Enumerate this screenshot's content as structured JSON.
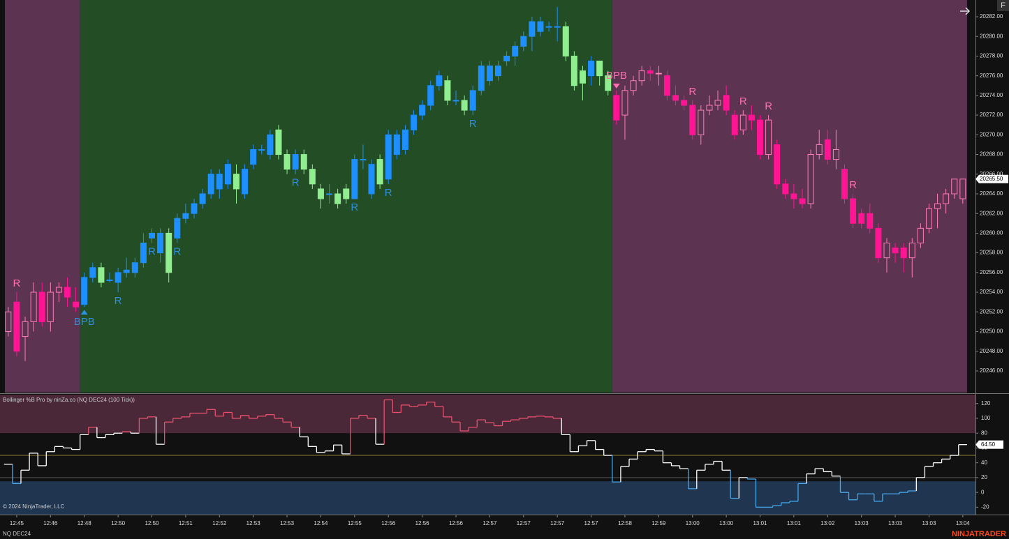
{
  "chart_data": [
    {
      "type": "candlestick",
      "xlim": [
        -0.4,
        114.5
      ],
      "ylim": [
        20243.8,
        20283.7
      ],
      "yticks": [
        {
          "value": 20246,
          "label": "20246.00"
        },
        {
          "value": 20248,
          "label": "20248.00"
        },
        {
          "value": 20250,
          "label": "20250.00"
        },
        {
          "value": 20252,
          "label": "20252.00"
        },
        {
          "value": 20254,
          "label": "20254.00"
        },
        {
          "value": 20256,
          "label": "20256.00"
        },
        {
          "value": 20258,
          "label": "20258.00"
        },
        {
          "value": 20260,
          "label": "20260.00"
        },
        {
          "value": 20262,
          "label": "20262.00"
        },
        {
          "value": 20264,
          "label": "20264.00"
        },
        {
          "value": 20266,
          "label": "20266.00"
        },
        {
          "value": 20268,
          "label": "20268.00"
        },
        {
          "value": 20270,
          "label": "20270.00"
        },
        {
          "value": 20272,
          "label": "20272.00"
        },
        {
          "value": 20274,
          "label": "20274.00"
        },
        {
          "value": 20276,
          "label": "20276.00"
        },
        {
          "value": 20278,
          "label": "20278.00"
        },
        {
          "value": 20280,
          "label": "20280.00"
        },
        {
          "value": 20282,
          "label": "20282.00"
        }
      ],
      "last_price": {
        "value": 20265.5,
        "label": "20265.50"
      },
      "regions": [
        {
          "start": 0,
          "end": 8,
          "color": "#5c3350",
          "up_color": "#ff7eb9",
          "down_color": "#ff1493"
        },
        {
          "start": 9,
          "end": 71,
          "color": "#234d24",
          "up_color": "#1e8fff",
          "down_color": "#90ee90"
        },
        {
          "start": 72,
          "end": 113,
          "color": "#5c3350",
          "up_color": "#ff7eb9",
          "down_color": "#ff1493"
        }
      ],
      "open": [
        20250,
        20253,
        20249.5,
        20251,
        20254,
        20251,
        20254,
        20254.5,
        20253,
        20252.75,
        20255.5,
        20256.5,
        20255.25,
        20255,
        20256,
        20256,
        20257,
        20259.5,
        20258,
        20260,
        20259.5,
        20261.5,
        20262,
        20263,
        20264,
        20264.5,
        20265,
        20266,
        20264,
        20267,
        20268.5,
        20268,
        20270.5,
        20268,
        20266.5,
        20268,
        20266.5,
        20264.5,
        20264,
        20264,
        20264.5,
        20263.5,
        20267.5,
        20264,
        20267.5,
        20265.5,
        20268,
        20268.5,
        20270.5,
        20272,
        20273,
        20275,
        20275.5,
        20273.5,
        20273.5,
        20272.5,
        20274.5,
        20275.5,
        20276,
        20277.5,
        20278,
        20279,
        20280,
        20280.5,
        20281,
        20281,
        20281,
        20278,
        20276.5,
        20276,
        20277.5,
        20276,
        20274,
        20272,
        20274.5,
        20275.5,
        20276.5,
        20276.25,
        20276,
        20274,
        20273.5,
        20273,
        20270,
        20272.5,
        20273,
        20274,
        20272,
        20270.5,
        20272,
        20271.5,
        20268,
        20269,
        20265,
        20264,
        20263.5,
        20263,
        20268,
        20269.5,
        20267.5,
        20266.5,
        20263.5,
        20262,
        20262,
        20260.5,
        20257.5,
        20258.5,
        20258.5,
        20257.5,
        20259,
        20260.5,
        20262.5,
        20263,
        20264,
        20263.5
      ],
      "high": [
        20252.5,
        20254,
        20251.5,
        20255,
        20255,
        20255,
        20255,
        20255.5,
        20254.5,
        20256,
        20257,
        20257,
        20256,
        20256.5,
        20257.5,
        20257.5,
        20260,
        20260.5,
        20260.5,
        20260.5,
        20262,
        20263,
        20263.5,
        20264.5,
        20266.5,
        20266.5,
        20267.5,
        20267,
        20267,
        20269,
        20269,
        20270.5,
        20271,
        20268.5,
        20268.5,
        20268.5,
        20267,
        20265,
        20265,
        20264.5,
        20265,
        20268,
        20269,
        20267.5,
        20268,
        20270.5,
        20270.5,
        20271,
        20272.5,
        20273.5,
        20275.5,
        20276.5,
        20276,
        20274.5,
        20274,
        20275,
        20277.5,
        20277.5,
        20277.5,
        20278.5,
        20279.5,
        20280.5,
        20282,
        20282,
        20281.5,
        20283,
        20281.5,
        20278.5,
        20277,
        20278,
        20277.5,
        20276.5,
        20274.5,
        20275,
        20276,
        20277,
        20277,
        20277,
        20276.5,
        20275,
        20274,
        20273.5,
        20273,
        20274,
        20274.5,
        20275,
        20272.5,
        20272.5,
        20273,
        20272,
        20272,
        20269.5,
        20265.5,
        20265,
        20264.5,
        20268.5,
        20270.5,
        20270.5,
        20270.5,
        20267,
        20264,
        20262.5,
        20263,
        20261,
        20259.5,
        20259,
        20259,
        20259.5,
        20261,
        20263,
        20264,
        20264.5,
        20265.5,
        20265.5
      ],
      "low": [
        20249.5,
        20247.5,
        20247,
        20250,
        20250.5,
        20250,
        20253,
        20252.5,
        20252,
        20252.5,
        20255,
        20254.5,
        20255,
        20254,
        20255.5,
        20255.5,
        20256.5,
        20259,
        20257,
        20255,
        20259,
        20261,
        20261.5,
        20262.5,
        20263.5,
        20263.5,
        20264.5,
        20263,
        20263.5,
        20266.5,
        20268,
        20267.5,
        20267.5,
        20266,
        20266,
        20266,
        20264.5,
        20262.5,
        20263,
        20262.5,
        20263,
        20263.5,
        20266.5,
        20263.5,
        20264.5,
        20265,
        20267.5,
        20268,
        20270,
        20271.5,
        20272.5,
        20274.5,
        20273,
        20273,
        20272,
        20272,
        20274,
        20275,
        20275.5,
        20277,
        20277,
        20278.5,
        20278.5,
        20280,
        20280.5,
        20279.5,
        20277.5,
        20274.5,
        20273.5,
        20275,
        20275,
        20274,
        20271,
        20269.5,
        20274,
        20275,
        20275.5,
        20275,
        20273.5,
        20273,
        20272.5,
        20269.5,
        20269,
        20272,
        20272.5,
        20272,
        20269.5,
        20270,
        20270.5,
        20267.5,
        20267.5,
        20264.5,
        20263.5,
        20262.5,
        20262.5,
        20262.5,
        20267.5,
        20267,
        20266.5,
        20263,
        20260.5,
        20260.5,
        20260,
        20257,
        20256,
        20257,
        20256,
        20255.5,
        20258.5,
        20260,
        20260.5,
        20262,
        20263.5,
        20263
      ],
      "close": [
        20252,
        20248,
        20251,
        20254,
        20251,
        20254,
        20254.5,
        20253.5,
        20252.5,
        20255.5,
        20256.5,
        20255,
        20255.25,
        20256,
        20256.25,
        20257,
        20259,
        20260,
        20260,
        20256,
        20261.5,
        20262,
        20263,
        20264,
        20266,
        20266,
        20267,
        20264.5,
        20266.5,
        20268.5,
        20268.5,
        20270,
        20268,
        20266.5,
        20268,
        20266.5,
        20265,
        20263.5,
        20264,
        20263,
        20263.5,
        20267.5,
        20267.5,
        20267,
        20265,
        20270,
        20270,
        20270.5,
        20272,
        20273,
        20275,
        20276,
        20273.5,
        20273.5,
        20272.5,
        20274.5,
        20277,
        20277,
        20277,
        20278,
        20279,
        20280,
        20281.5,
        20281.5,
        20281,
        20281,
        20278,
        20275,
        20275.25,
        20277.5,
        20276,
        20274.5,
        20271.5,
        20274.5,
        20275.5,
        20276.5,
        20276.25,
        20276.25,
        20274,
        20273.5,
        20273,
        20270,
        20272.5,
        20273,
        20273.5,
        20272.5,
        20270,
        20272,
        20271.5,
        20268,
        20271.5,
        20265,
        20264,
        20263.5,
        20263,
        20268,
        20269,
        20267.5,
        20268.5,
        20263.5,
        20261,
        20261,
        20260.5,
        20257.5,
        20259,
        20258,
        20257.5,
        20259,
        20260.5,
        20262.5,
        20263,
        20264,
        20265.5,
        20265.5
      ],
      "annotations": [
        {
          "text": "R",
          "index": 1,
          "position": "above",
          "color": "#ff6fae"
        },
        {
          "text": "BPB",
          "index": 9,
          "position": "below",
          "color": "#2f8fe0",
          "marker": true
        },
        {
          "text": "R",
          "index": 13,
          "position": "below",
          "color": "#2f8fe0"
        },
        {
          "text": "R",
          "index": 17,
          "position": "below",
          "color": "#2f8fe0"
        },
        {
          "text": "R",
          "index": 20,
          "position": "below",
          "color": "#2f8fe0"
        },
        {
          "text": "R",
          "index": 34,
          "position": "below",
          "color": "#2f8fe0"
        },
        {
          "text": "R",
          "index": 41,
          "position": "below",
          "color": "#2f8fe0"
        },
        {
          "text": "R",
          "index": 45,
          "position": "below",
          "color": "#2f8fe0"
        },
        {
          "text": "R",
          "index": 55,
          "position": "below",
          "color": "#2f8fe0"
        },
        {
          "text": "BPB",
          "index": 72,
          "position": "above",
          "color": "#ff6fae",
          "marker": true
        },
        {
          "text": "R",
          "index": 81,
          "position": "above",
          "color": "#ff6fae"
        },
        {
          "text": "R",
          "index": 87,
          "position": "above",
          "color": "#ff6fae"
        },
        {
          "text": "R",
          "index": 90,
          "position": "above",
          "color": "#ff6fae"
        },
        {
          "text": "R",
          "index": 100,
          "position": "above",
          "color": "#ff6fae"
        }
      ],
      "button": "F"
    },
    {
      "type": "line",
      "title": "Bollinger %B Pro by ninZa.co (NQ DEC24 (100 Tick))",
      "xlim": [
        -0.4,
        114.5
      ],
      "ylim": [
        -30,
        132
      ],
      "yticks": [
        120,
        100,
        80,
        60,
        40,
        20,
        0,
        -20
      ],
      "xticks": [
        {
          "value": 1,
          "label": "12:45"
        },
        {
          "value": 5,
          "label": "12:46"
        },
        {
          "value": 9,
          "label": "12:48"
        },
        {
          "value": 13,
          "label": "12:50"
        },
        {
          "value": 17,
          "label": "12:50"
        },
        {
          "value": 21,
          "label": "12:51"
        },
        {
          "value": 25,
          "label": "12:52"
        },
        {
          "value": 29,
          "label": "12:53"
        },
        {
          "value": 33,
          "label": "12:53"
        },
        {
          "value": 37,
          "label": "12:54"
        },
        {
          "value": 41,
          "label": "12:55"
        },
        {
          "value": 45,
          "label": "12:56"
        },
        {
          "value": 49,
          "label": "12:56"
        },
        {
          "value": 53,
          "label": "12:56"
        },
        {
          "value": 57,
          "label": "12:57"
        },
        {
          "value": 61,
          "label": "12:57"
        },
        {
          "value": 65,
          "label": "12:57"
        },
        {
          "value": 69,
          "label": "12:57"
        },
        {
          "value": 73,
          "label": "12:58"
        },
        {
          "value": 77,
          "label": "12:59"
        },
        {
          "value": 81,
          "label": "13:00"
        },
        {
          "value": 85,
          "label": "13:00"
        },
        {
          "value": 89,
          "label": "13:01"
        },
        {
          "value": 93,
          "label": "13:01"
        },
        {
          "value": 97,
          "label": "13:02"
        },
        {
          "value": 101,
          "label": "13:03"
        },
        {
          "value": 105,
          "label": "13:03"
        },
        {
          "value": 109,
          "label": "13:03"
        },
        {
          "value": 113,
          "label": "13:04"
        }
      ],
      "values": [
        38,
        12,
        30,
        53,
        36,
        55,
        62,
        60,
        58,
        78,
        88,
        74,
        78,
        80,
        82,
        80,
        100,
        102,
        65,
        95,
        100,
        102,
        107,
        107,
        112,
        103,
        108,
        100,
        104,
        100,
        103,
        105,
        100,
        95,
        88,
        75,
        62,
        54,
        56,
        64,
        52,
        100,
        104,
        100,
        65,
        125,
        108,
        118,
        116,
        118,
        122,
        116,
        102,
        95,
        83,
        88,
        98,
        94,
        90,
        96,
        98,
        100,
        102,
        103,
        102,
        100,
        78,
        55,
        63,
        70,
        58,
        50,
        14,
        35,
        45,
        55,
        58,
        56,
        40,
        36,
        32,
        5,
        30,
        38,
        42,
        30,
        -8,
        20,
        18,
        -20,
        -20,
        -18,
        -14,
        -12,
        12,
        25,
        32,
        28,
        22,
        0,
        -10,
        -2,
        -2,
        -12,
        -2,
        -2,
        0,
        2,
        20,
        35,
        40,
        45,
        50,
        64.5
      ],
      "last_value": {
        "value": 64.5,
        "label": "64.50"
      },
      "upper_band": {
        "from": 80,
        "to": 132,
        "color": "#4a2838"
      },
      "lower_band": {
        "from": -30,
        "to": 15,
        "color": "#1f3550"
      },
      "upper_level": 80,
      "lower_level": 20,
      "upper_color": "#e8506e",
      "middle_color": "#ffffff",
      "lower_color": "#48a8ec",
      "level_lines": [
        {
          "value": 50,
          "color": "#8a7a2a"
        },
        {
          "value": 20,
          "color": "#555555"
        }
      ],
      "copyright": "© 2024 NinjaTrader, LLC",
      "instrument": "NQ DEC24",
      "brand": "NINJATRADER"
    }
  ]
}
